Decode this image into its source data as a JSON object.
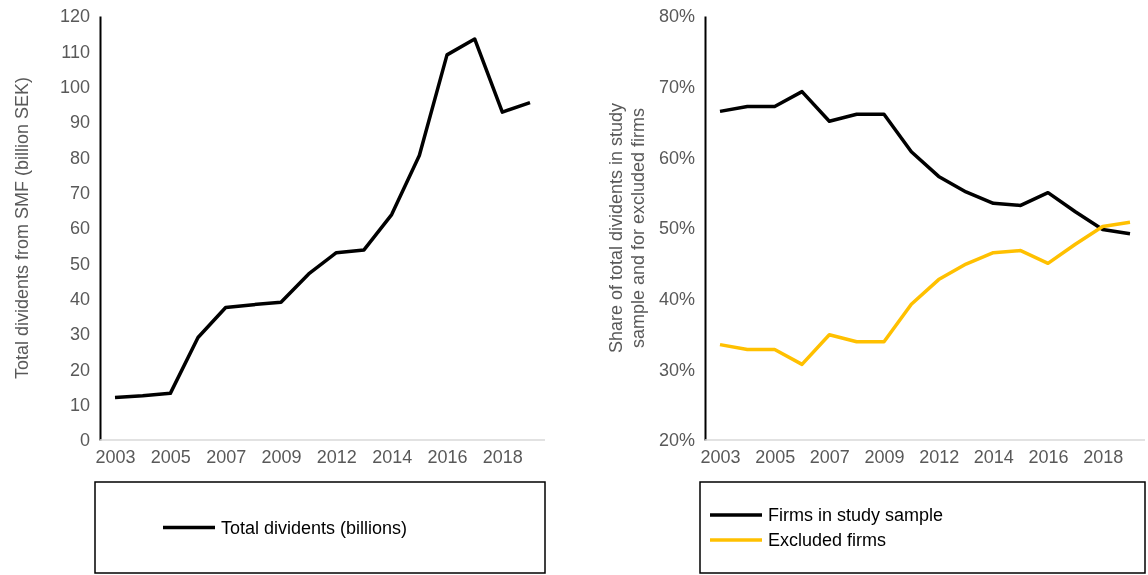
{
  "chart_data": [
    {
      "type": "line",
      "ylabel": "Total dividents from SMF (billion SEK)",
      "categories": [
        "2003",
        null,
        "2005",
        null,
        "2007",
        null,
        "2009",
        null,
        "2012",
        null,
        "2014",
        null,
        "2016",
        null,
        "2018",
        null
      ],
      "series": [
        {
          "name": "Total dividents (billions)",
          "color": "#000000",
          "values": [
            12,
            12.5,
            13.2,
            29,
            37.5,
            38.3,
            39,
            47,
            53,
            53.8,
            63.8,
            80.5,
            109,
            113.5,
            92.8,
            95.5
          ]
        }
      ],
      "ylim": [
        0,
        120
      ],
      "yticks": [
        0,
        10,
        20,
        30,
        40,
        50,
        60,
        70,
        80,
        90,
        100,
        110,
        120
      ],
      "legend": "bottom",
      "grid": false
    },
    {
      "type": "line",
      "ylabel": "Share of total dividents in study sample and for excluded firms",
      "categories": [
        "2003",
        null,
        "2005",
        null,
        "2007",
        null,
        "2009",
        null,
        "2012",
        null,
        "2014",
        null,
        "2016",
        null,
        "2018",
        null
      ],
      "series": [
        {
          "name": "Firms in study sample",
          "color": "#000000",
          "values": [
            66.5,
            67.2,
            67.2,
            69.3,
            65.1,
            66.1,
            66.1,
            60.8,
            57.3,
            55.1,
            53.5,
            53.2,
            55,
            52.3,
            49.8,
            49.2
          ]
        },
        {
          "name": "Excluded firms",
          "color": "#ffc000",
          "values": [
            33.5,
            32.8,
            32.8,
            30.7,
            34.9,
            33.9,
            33.9,
            39.2,
            42.7,
            44.9,
            46.5,
            46.8,
            45,
            47.7,
            50.2,
            50.8
          ]
        }
      ],
      "ylim": [
        20,
        80
      ],
      "yticks": [
        {
          "value": 20,
          "label": "20%"
        },
        {
          "value": 30,
          "label": "30%"
        },
        {
          "value": 40,
          "label": "40%"
        },
        {
          "value": 50,
          "label": "50%"
        },
        {
          "value": 60,
          "label": "60%"
        },
        {
          "value": 70,
          "label": "70%"
        },
        {
          "value": 80,
          "label": "80%"
        }
      ],
      "legend": "bottom",
      "grid": false
    }
  ]
}
